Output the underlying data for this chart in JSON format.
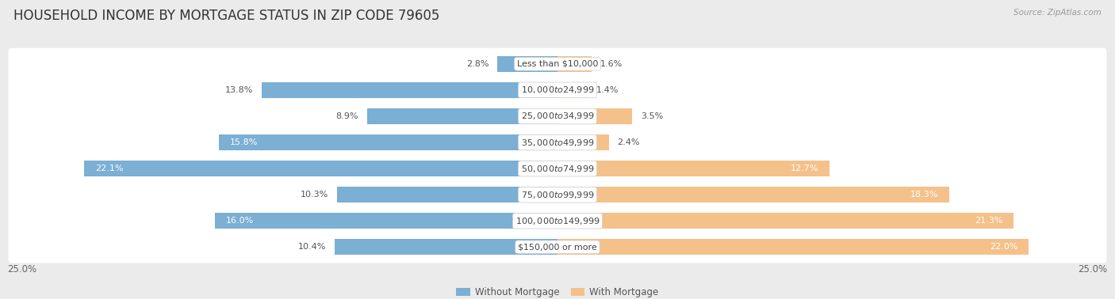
{
  "title": "HOUSEHOLD INCOME BY MORTGAGE STATUS IN ZIP CODE 79605",
  "source": "Source: ZipAtlas.com",
  "categories": [
    "Less than $10,000",
    "$10,000 to $24,999",
    "$25,000 to $34,999",
    "$35,000 to $49,999",
    "$50,000 to $74,999",
    "$75,000 to $99,999",
    "$100,000 to $149,999",
    "$150,000 or more"
  ],
  "without_mortgage": [
    2.8,
    13.8,
    8.9,
    15.8,
    22.1,
    10.3,
    16.0,
    10.4
  ],
  "with_mortgage": [
    1.6,
    1.4,
    3.5,
    2.4,
    12.7,
    18.3,
    21.3,
    22.0
  ],
  "color_without": "#7bafd4",
  "color_with": "#f5c18a",
  "background_color": "#ebebeb",
  "row_bg_color": "#ffffff",
  "axis_limit": 25.0,
  "legend_labels": [
    "Without Mortgage",
    "With Mortgage"
  ],
  "title_fontsize": 12,
  "label_fontsize": 8.0,
  "tick_fontsize": 8.5,
  "wo_label_inside_threshold": 14.0,
  "wi_label_inside_threshold": 10.0
}
